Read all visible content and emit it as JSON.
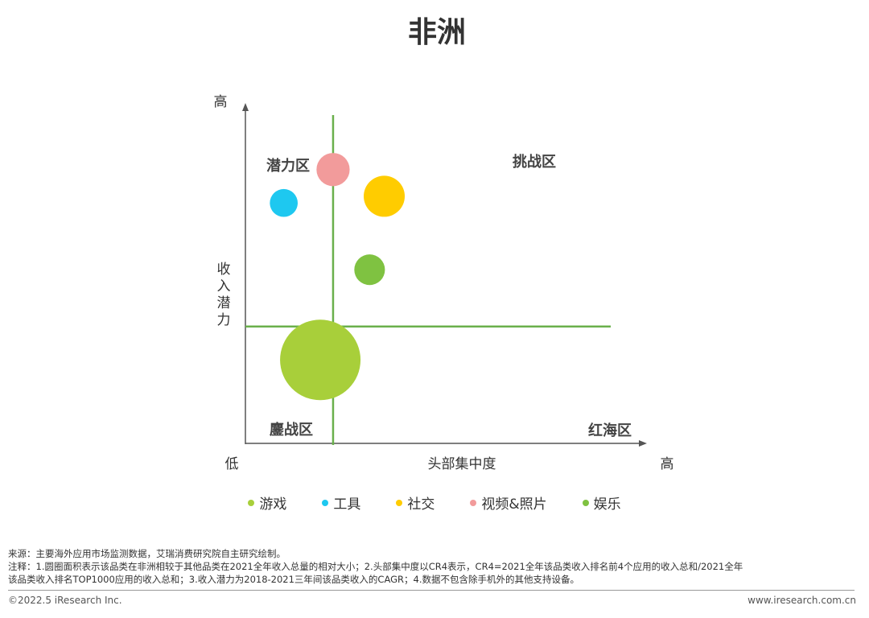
{
  "chart_data": {
    "type": "scatter",
    "title": "非洲",
    "xlabel": "头部集中度",
    "ylabel": "收入潜力",
    "x_low_label": "低",
    "x_high_label": "高",
    "y_high_label": "高",
    "quadrants": {
      "top_left": "潜力区",
      "top_right": "挑战区",
      "bottom_left": "鏖战区",
      "bottom_right": "红海区"
    },
    "xlim": [
      0,
      100
    ],
    "ylim": [
      0,
      100
    ],
    "divider_x": 24,
    "divider_y": 35,
    "series": [
      {
        "name": "游戏",
        "color": "#a8cf3a",
        "x": 20.5,
        "y": 25,
        "size": 100
      },
      {
        "name": "工具",
        "color": "#1ec8f0",
        "x": 10.5,
        "y": 72,
        "size": 12
      },
      {
        "name": "社交",
        "color": "#ffcc00",
        "x": 38,
        "y": 74,
        "size": 26
      },
      {
        "name": "视频&照片",
        "color": "#f29b9b",
        "x": 24,
        "y": 82,
        "size": 17
      },
      {
        "name": "娱乐",
        "color": "#7fc241",
        "x": 34,
        "y": 52,
        "size": 14.5
      }
    ]
  },
  "notes": {
    "source": "来源：主要海外应用市场监测数据，艾瑞消费研究院自主研究绘制。",
    "note_line1": "注释：1.圆圈面积表示该品类在非洲相较于其他品类在2021全年收入总量的相对大小；2.头部集中度以CR4表示，CR4=2021全年该品类收入排名前4个应用的收入总和/2021全年",
    "note_line2": "该品类收入排名TOP1000应用的收入总和；3.收入潜力为2018-2021三年间该品类收入的CAGR；4.数据不包含除手机外的其他支持设备。"
  },
  "footer": {
    "copyright": "©2022.5 iResearch Inc.",
    "website": "www.iresearch.com.cn"
  }
}
